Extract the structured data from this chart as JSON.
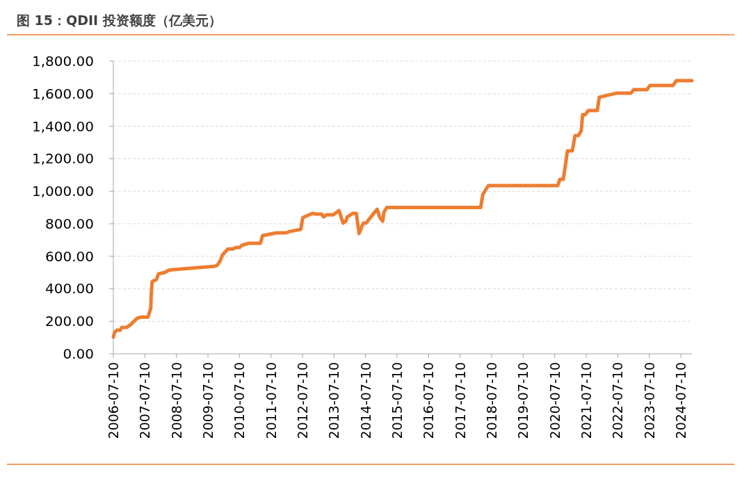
{
  "chart_data": {
    "type": "line",
    "title": "图 15：QDII 投资额度（亿美元）",
    "color": "#ed7d31",
    "grid": "y",
    "legend": false,
    "marker": "none",
    "line_style": "solid",
    "xlim": [
      "2006-07-10",
      "2024-11-15"
    ],
    "ylim": [
      0,
      1800
    ],
    "yticks": [
      {
        "value": 0,
        "label": "0.00"
      },
      {
        "value": 200,
        "label": "200.00"
      },
      {
        "value": 400,
        "label": "400.00"
      },
      {
        "value": 600,
        "label": "600.00"
      },
      {
        "value": 800,
        "label": "800.00"
      },
      {
        "value": 1000,
        "label": "1,000.00"
      },
      {
        "value": 1200,
        "label": "1,200.00"
      },
      {
        "value": 1400,
        "label": "1,400.00"
      },
      {
        "value": 1600,
        "label": "1,600.00"
      },
      {
        "value": 1800,
        "label": "1,800.00"
      }
    ],
    "xticks": [
      "2006-07-10",
      "2007-07-10",
      "2008-07-10",
      "2009-07-10",
      "2010-07-10",
      "2011-07-10",
      "2012-07-10",
      "2013-07-10",
      "2014-07-10",
      "2015-07-10",
      "2016-07-10",
      "2017-07-10",
      "2018-07-10",
      "2019-07-10",
      "2020-07-10",
      "2021-07-10",
      "2022-07-10",
      "2023-07-10",
      "2024-07-10"
    ],
    "x": [
      "2006-07-10",
      "2006-07-26",
      "2006-08-19",
      "2006-09-28",
      "2006-10-15",
      "2006-12-10",
      "2007-01-27",
      "2007-04-10",
      "2007-05-28",
      "2007-08-16",
      "2007-09-17",
      "2007-09-20",
      "2007-09-25",
      "2007-10-03",
      "2007-11-21",
      "2007-12-15",
      "2008-02-25",
      "2008-04-06",
      "2008-05-24",
      "2009-10-05",
      "2009-10-29",
      "2009-11-30",
      "2009-12-24",
      "2010-02-26",
      "2010-04-24",
      "2010-06-03",
      "2010-07-13",
      "2010-08-06",
      "2010-10-25",
      "2011-03-10",
      "2011-04-04",
      "2011-09-12",
      "2012-01-02",
      "2012-02-11",
      "2012-06-19",
      "2012-07-13",
      "2012-11-03",
      "2012-12-13",
      "2013-02-16",
      "2013-03-12",
      "2013-04-13",
      "2013-07-02",
      "2013-09-05",
      "2013-10-23",
      "2013-11-24",
      "2013-12-10",
      "2014-02-13",
      "2014-03-25",
      "2014-04-26",
      "2014-06-13",
      "2014-07-15",
      "2014-09-18",
      "2014-11-21",
      "2014-12-23",
      "2015-01-24",
      "2015-02-09",
      "2015-03-14",
      "2018-03-05",
      "2018-03-29",
      "2018-06-01",
      "2020-08-14",
      "2020-09-07",
      "2020-10-17",
      "2020-12-04",
      "2021-01-29",
      "2021-03-02",
      "2021-04-11",
      "2021-05-13",
      "2021-05-29",
      "2021-06-30",
      "2021-08-01",
      "2021-11-14",
      "2021-12-08",
      "2022-06-23",
      "2022-12-10",
      "2023-01-11",
      "2023-06-15",
      "2023-07-17",
      "2024-04-09",
      "2024-05-19",
      "2024-11-15"
    ],
    "values": [
      103,
      133,
      145,
      145,
      162,
      162,
      180,
      218,
      226,
      226,
      282,
      346,
      389,
      445,
      457,
      492,
      500,
      513,
      517,
      539,
      547,
      573,
      607,
      645,
      645,
      654,
      654,
      667,
      680,
      680,
      727,
      744,
      744,
      752,
      765,
      838,
      864,
      859,
      859,
      842,
      855,
      855,
      881,
      804,
      816,
      842,
      864,
      864,
      740,
      804,
      804,
      847,
      889,
      838,
      816,
      872,
      900,
      900,
      979,
      1035,
      1035,
      1073,
      1073,
      1248,
      1248,
      1342,
      1342,
      1372,
      1471,
      1471,
      1496,
      1496,
      1578,
      1603,
      1603,
      1625,
      1625,
      1650,
      1650,
      1680,
      1680
    ]
  }
}
